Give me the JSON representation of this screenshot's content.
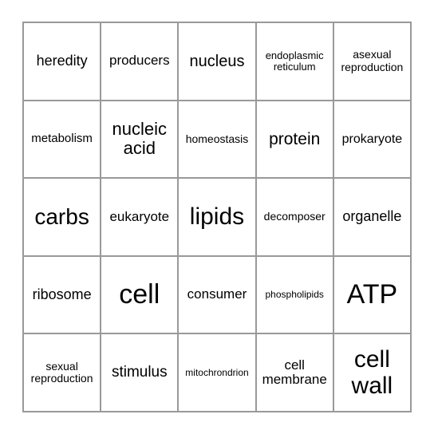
{
  "grid": {
    "rows": 5,
    "cols": 5,
    "border_color": "#999999",
    "background_color": "#ffffff",
    "text_color": "#000000",
    "cells": [
      {
        "text": "heredity",
        "fontsize": 18
      },
      {
        "text": "producers",
        "fontsize": 17
      },
      {
        "text": "nucleus",
        "fontsize": 20
      },
      {
        "text": "endoplasmic reticulum",
        "fontsize": 13
      },
      {
        "text": "asexual reproduction",
        "fontsize": 14
      },
      {
        "text": "metabolism",
        "fontsize": 15
      },
      {
        "text": "nucleic acid",
        "fontsize": 22
      },
      {
        "text": "homeostasis",
        "fontsize": 14
      },
      {
        "text": "protein",
        "fontsize": 21
      },
      {
        "text": "prokaryote",
        "fontsize": 16
      },
      {
        "text": "carbs",
        "fontsize": 28
      },
      {
        "text": "eukaryote",
        "fontsize": 17
      },
      {
        "text": "lipids",
        "fontsize": 30
      },
      {
        "text": "decomposer",
        "fontsize": 14
      },
      {
        "text": "organelle",
        "fontsize": 18
      },
      {
        "text": "ribosome",
        "fontsize": 18
      },
      {
        "text": "cell",
        "fontsize": 34
      },
      {
        "text": "consumer",
        "fontsize": 17
      },
      {
        "text": "phospholipids",
        "fontsize": 12
      },
      {
        "text": "ATP",
        "fontsize": 34
      },
      {
        "text": "sexual reproduction",
        "fontsize": 14
      },
      {
        "text": "stimulus",
        "fontsize": 19
      },
      {
        "text": "mitochrondrion",
        "fontsize": 12
      },
      {
        "text": "cell membrane",
        "fontsize": 17
      },
      {
        "text": "cell wall",
        "fontsize": 30
      }
    ]
  }
}
